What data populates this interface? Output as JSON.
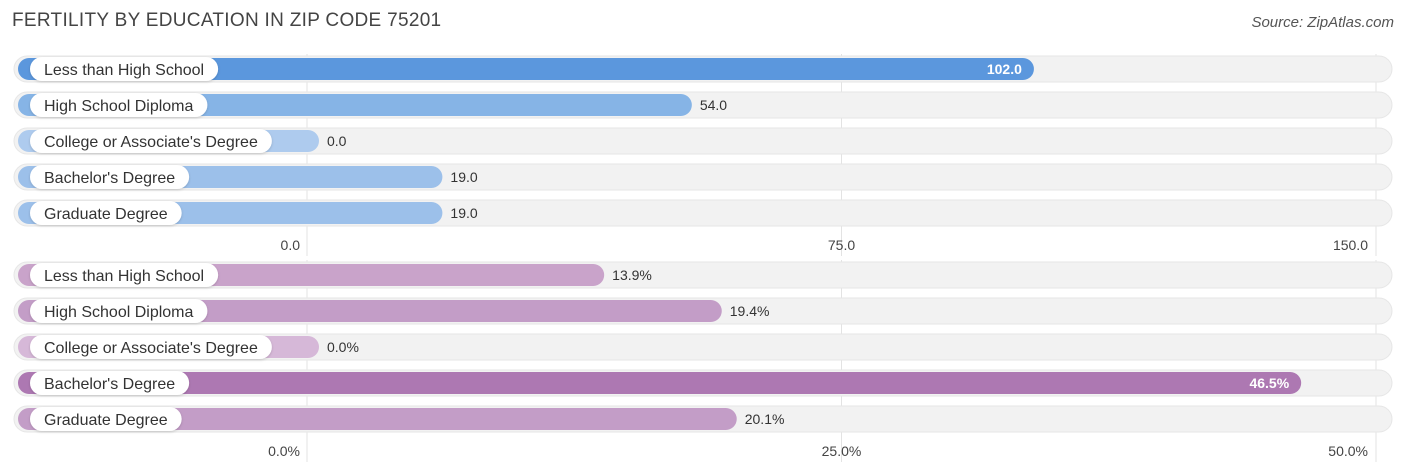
{
  "title": "FERTILITY BY EDUCATION IN ZIP CODE 75201",
  "source": "Source: ZipAtlas.com",
  "chart_data": [
    {
      "type": "bar",
      "orientation": "horizontal",
      "categories": [
        "Less than High School",
        "High School Diploma",
        "College or Associate's Degree",
        "Bachelor's Degree",
        "Graduate Degree"
      ],
      "values": [
        102.0,
        54.0,
        0.0,
        19.0,
        19.0
      ],
      "value_labels": [
        "102.0",
        "54.0",
        "0.0",
        "19.0",
        "19.0"
      ],
      "xlim": [
        0,
        150
      ],
      "ticks": [
        0,
        75,
        150
      ],
      "tick_labels": [
        "0.0",
        "75.0",
        "150.0"
      ],
      "colors": [
        "#5b97dd",
        "#86b4e6",
        "#aecbee",
        "#9cc0ea",
        "#9cc0ea"
      ],
      "grid": true
    },
    {
      "type": "bar",
      "orientation": "horizontal",
      "categories": [
        "Less than High School",
        "High School Diploma",
        "College or Associate's Degree",
        "Bachelor's Degree",
        "Graduate Degree"
      ],
      "values": [
        13.9,
        19.4,
        0.0,
        46.5,
        20.1
      ],
      "value_labels": [
        "13.9%",
        "19.4%",
        "0.0%",
        "46.5%",
        "20.1%"
      ],
      "xlim": [
        0,
        50
      ],
      "ticks": [
        0,
        25,
        50
      ],
      "tick_labels": [
        "0.0%",
        "25.0%",
        "50.0%"
      ],
      "colors": [
        "#c9a3ca",
        "#c39dc7",
        "#d6b8d8",
        "#ad78b2",
        "#c39dc7"
      ],
      "grid": true
    }
  ]
}
